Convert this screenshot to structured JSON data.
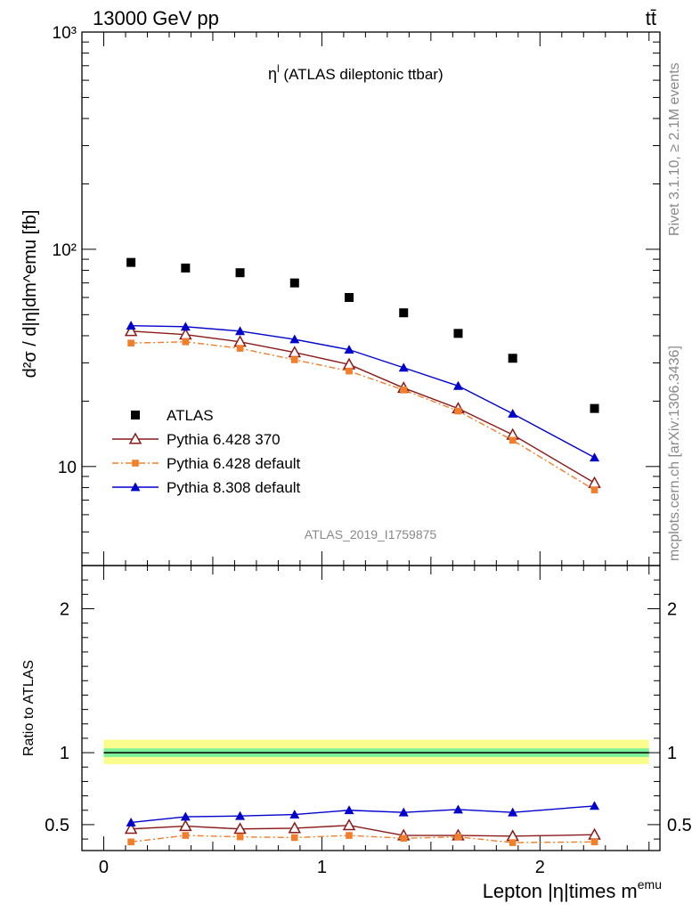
{
  "header": {
    "left": "13000 GeV pp",
    "right": "tt̄"
  },
  "side_text": {
    "rivet": "Rivet 3.1.10, ≥ 2.1M events",
    "mcplots": "mcplots.cern.ch [arXiv:1306.3436]"
  },
  "watermark": "ATLAS_2019_I1759875",
  "chart_data": [
    {
      "type": "line",
      "title": "η^l (ATLAS dileptonic ttbar)",
      "title_main": "η",
      "title_sup": "l",
      "title_rest": " (ATLAS dileptonic ttbar)",
      "ylabel": "d²σ / d|η|dm^emu [fb]",
      "yscale": "log",
      "ylim": [
        3.5,
        1000
      ],
      "xlim": [
        -0.1,
        2.55
      ],
      "y_tick_labels": [
        "10",
        "10²",
        "10³"
      ],
      "legend_placement": "lower-left",
      "x": [
        0.125,
        0.375,
        0.625,
        0.875,
        1.125,
        1.375,
        1.625,
        1.875,
        2.25
      ],
      "series": [
        {
          "name": "ATLAS",
          "color": "#000000",
          "marker": "square",
          "line": false,
          "values": [
            87,
            82,
            78,
            70,
            60,
            51,
            41,
            31.5,
            18.5
          ]
        },
        {
          "name": "Pythia 6.428 370",
          "color": "#8b1a1a",
          "marker": "open-triangle",
          "line": "solid",
          "values": [
            42,
            40.5,
            37.5,
            33.5,
            29.5,
            23,
            18.5,
            14,
            8.4
          ]
        },
        {
          "name": "Pythia 6.428 default",
          "color": "#f07e2a",
          "marker": "square-small",
          "line": "dashdot",
          "values": [
            37,
            37.5,
            35,
            31,
            27.5,
            22.5,
            18,
            13.2,
            7.8
          ]
        },
        {
          "name": "Pythia 8.308 default",
          "color": "#0000cc",
          "marker": "filled-triangle",
          "line": "solid",
          "values": [
            44.5,
            44,
            42,
            38.5,
            34.5,
            28.5,
            23.5,
            17.5,
            11
          ]
        }
      ]
    },
    {
      "type": "line",
      "ylabel": "Ratio to ATLAS",
      "xlabel": "Lepton |η|times m^emu",
      "xlabel_main": "Lepton |η|times m",
      "xlabel_sup": "emu",
      "ylim": [
        0.32,
        2.3
      ],
      "xlim": [
        -0.1,
        2.55
      ],
      "x_tick_labels": [
        "0",
        "1",
        "2"
      ],
      "y_tick_labels": [
        "0.5",
        "1",
        "2"
      ],
      "band": {
        "yellow": [
          0.92,
          1.09
        ],
        "green": [
          0.97,
          1.03
        ]
      },
      "x": [
        0.125,
        0.375,
        0.625,
        0.875,
        1.125,
        1.375,
        1.625,
        1.875,
        2.25
      ],
      "series": [
        {
          "name": "Pythia 6.428 370",
          "color": "#8b1a1a",
          "values": [
            0.47,
            0.49,
            0.47,
            0.475,
            0.495,
            0.425,
            0.425,
            0.42,
            0.43
          ]
        },
        {
          "name": "Pythia 6.428 default",
          "color": "#f07e2a",
          "values": [
            0.38,
            0.425,
            0.415,
            0.41,
            0.425,
            0.405,
            0.415,
            0.375,
            0.38
          ]
        },
        {
          "name": "Pythia 8.308 default",
          "color": "#0000cc",
          "values": [
            0.515,
            0.555,
            0.56,
            0.57,
            0.6,
            0.585,
            0.605,
            0.585,
            0.63
          ]
        }
      ]
    }
  ]
}
